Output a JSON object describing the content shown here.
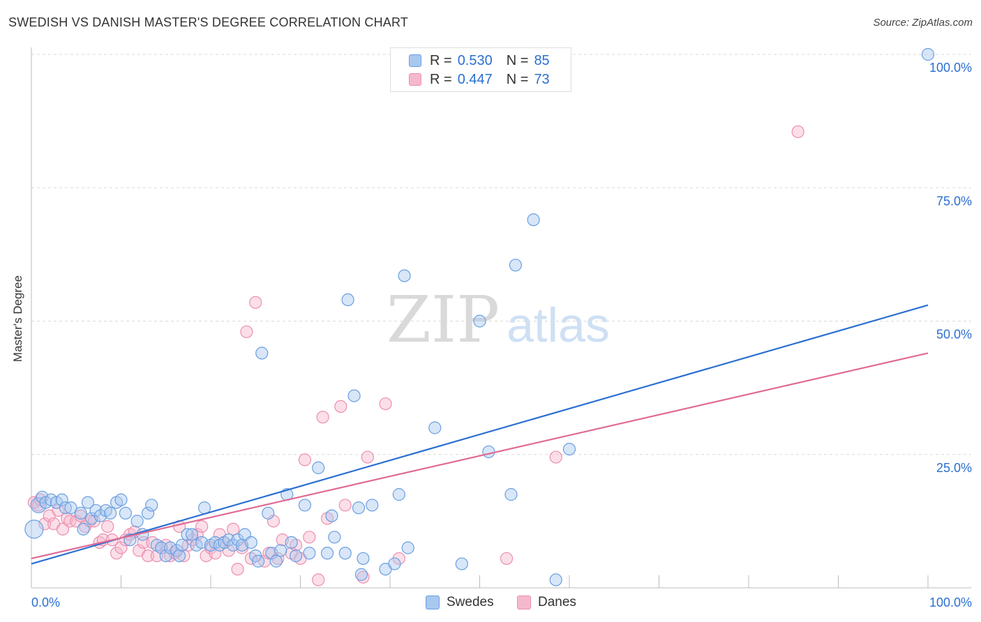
{
  "title": "SWEDISH VS DANISH MASTER'S DEGREE CORRELATION CHART",
  "source": "Source: ZipAtlas.com",
  "watermark": {
    "zip": "ZIP",
    "atlas": "atlas"
  },
  "legend_top": [
    {
      "r_label": "R =",
      "r_value": "0.530",
      "n_label": "N =",
      "n_value": "85"
    },
    {
      "r_label": "R =",
      "r_value": "0.447",
      "n_label": "N =",
      "n_value": "73"
    }
  ],
  "legend_bottom": [
    "Swedes",
    "Danes"
  ],
  "colors": {
    "swedes_fill": "#a9c8f0",
    "swedes_stroke": "#6a9fe0",
    "swedes_line": "#2b6fd1",
    "danes_fill": "#f6b8cc",
    "danes_stroke": "#ec8fae",
    "danes_line": "#e06a93",
    "tick_label": "#2b6fd1",
    "grid": "#d8d8d8"
  },
  "chart_data": {
    "type": "scatter",
    "title": "SWEDISH VS DANISH MASTER'S DEGREE CORRELATION CHART",
    "xlabel": "",
    "ylabel": "Master's Degree",
    "xlim": [
      0,
      100
    ],
    "ylim": [
      0,
      100
    ],
    "x_tick_labels": [
      "0.0%",
      "100.0%"
    ],
    "y_tick_labels": [
      "100.0%",
      "75.0%",
      "50.0%",
      "25.0%"
    ],
    "y_ticks": [
      100,
      75,
      50,
      25
    ],
    "grid": true,
    "legend_placement": "top-center",
    "series": [
      {
        "name": "Swedes",
        "color": "#6a9fe0",
        "trend": {
          "x": [
            0,
            100
          ],
          "y": [
            4.5,
            53.0
          ]
        },
        "points": [
          [
            0.3,
            11
          ],
          [
            0.8,
            15.5
          ],
          [
            1.2,
            17
          ],
          [
            1.6,
            16
          ],
          [
            2.2,
            16.5
          ],
          [
            2.8,
            16
          ],
          [
            3.4,
            16.5
          ],
          [
            3.8,
            15
          ],
          [
            4.4,
            15
          ],
          [
            5.5,
            14
          ],
          [
            5.8,
            11
          ],
          [
            6.3,
            16
          ],
          [
            6.7,
            13
          ],
          [
            7.2,
            14.5
          ],
          [
            7.7,
            13.5
          ],
          [
            8.3,
            14.5
          ],
          [
            8.8,
            14
          ],
          [
            9.5,
            16
          ],
          [
            10.0,
            16.5
          ],
          [
            10.5,
            14
          ],
          [
            11.0,
            9
          ],
          [
            11.8,
            12.5
          ],
          [
            12.4,
            10
          ],
          [
            13.0,
            14
          ],
          [
            13.4,
            15.5
          ],
          [
            14.0,
            8
          ],
          [
            14.5,
            7.5
          ],
          [
            15.0,
            6
          ],
          [
            15.5,
            7.5
          ],
          [
            16.2,
            7
          ],
          [
            16.5,
            6
          ],
          [
            16.8,
            8
          ],
          [
            17.4,
            10
          ],
          [
            17.9,
            10
          ],
          [
            18.4,
            8
          ],
          [
            19.0,
            8.5
          ],
          [
            19.3,
            15
          ],
          [
            20.0,
            8
          ],
          [
            20.5,
            8.5
          ],
          [
            21.0,
            8
          ],
          [
            21.5,
            8.5
          ],
          [
            22.0,
            9
          ],
          [
            22.5,
            8
          ],
          [
            23.0,
            9
          ],
          [
            23.5,
            8
          ],
          [
            23.8,
            10
          ],
          [
            24.5,
            8.5
          ],
          [
            25.0,
            6
          ],
          [
            25.3,
            5
          ],
          [
            25.7,
            44
          ],
          [
            26.4,
            14
          ],
          [
            26.8,
            6.5
          ],
          [
            27.3,
            5
          ],
          [
            27.8,
            7
          ],
          [
            28.5,
            17.5
          ],
          [
            29.0,
            8.5
          ],
          [
            29.5,
            6
          ],
          [
            30.5,
            15.5
          ],
          [
            31.0,
            6.5
          ],
          [
            32.0,
            22.5
          ],
          [
            33.0,
            6.5
          ],
          [
            33.5,
            13.5
          ],
          [
            33.8,
            9.5
          ],
          [
            35.0,
            6.5
          ],
          [
            35.3,
            54
          ],
          [
            36.0,
            36
          ],
          [
            36.5,
            15
          ],
          [
            36.8,
            2.5
          ],
          [
            37.0,
            5.5
          ],
          [
            38.0,
            15.5
          ],
          [
            39.5,
            3.5
          ],
          [
            40.5,
            4.5
          ],
          [
            41.0,
            17.5
          ],
          [
            41.6,
            58.5
          ],
          [
            42.0,
            7.5
          ],
          [
            45.0,
            30
          ],
          [
            48.0,
            4.5
          ],
          [
            50.0,
            50
          ],
          [
            51.0,
            25.5
          ],
          [
            53.5,
            17.5
          ],
          [
            54.0,
            60.5
          ],
          [
            56.0,
            69
          ],
          [
            58.5,
            1.5
          ],
          [
            60.0,
            26
          ],
          [
            100.0,
            100
          ]
        ],
        "sizes": {
          "0.3,11": 26
        }
      },
      {
        "name": "Danes",
        "color": "#ec8fae",
        "trend": {
          "x": [
            0,
            100
          ],
          "y": [
            5.5,
            44.0
          ]
        },
        "points": [
          [
            0.3,
            16
          ],
          [
            0.8,
            15.5
          ],
          [
            1.0,
            16.5
          ],
          [
            1.5,
            12
          ],
          [
            2.0,
            13.5
          ],
          [
            2.5,
            12
          ],
          [
            3.0,
            14.5
          ],
          [
            3.5,
            11
          ],
          [
            4.0,
            13
          ],
          [
            4.3,
            12.5
          ],
          [
            5.0,
            12.5
          ],
          [
            5.5,
            13.5
          ],
          [
            6.0,
            11.5
          ],
          [
            6.5,
            12.5
          ],
          [
            7.0,
            12.5
          ],
          [
            7.6,
            8.5
          ],
          [
            8.0,
            9
          ],
          [
            8.5,
            11.5
          ],
          [
            9.0,
            9
          ],
          [
            9.5,
            6.5
          ],
          [
            10.0,
            7.5
          ],
          [
            10.5,
            9
          ],
          [
            11.0,
            10
          ],
          [
            11.5,
            10.5
          ],
          [
            12.0,
            7
          ],
          [
            12.5,
            8.5
          ],
          [
            13.0,
            6
          ],
          [
            13.5,
            8.5
          ],
          [
            14.0,
            6
          ],
          [
            14.5,
            7.5
          ],
          [
            15.0,
            8
          ],
          [
            15.5,
            6
          ],
          [
            16.0,
            6.5
          ],
          [
            16.5,
            11.5
          ],
          [
            17.0,
            6
          ],
          [
            17.5,
            8
          ],
          [
            18.0,
            9
          ],
          [
            18.5,
            10
          ],
          [
            19.0,
            11.5
          ],
          [
            19.5,
            6
          ],
          [
            20.0,
            7.5
          ],
          [
            20.5,
            6.5
          ],
          [
            21.0,
            10
          ],
          [
            21.5,
            8.5
          ],
          [
            22.0,
            7
          ],
          [
            22.5,
            11
          ],
          [
            23.0,
            3.5
          ],
          [
            23.5,
            7.5
          ],
          [
            24.0,
            48
          ],
          [
            24.5,
            5.5
          ],
          [
            25.0,
            53.5
          ],
          [
            26.0,
            5
          ],
          [
            26.5,
            6.5
          ],
          [
            27.0,
            12.5
          ],
          [
            27.5,
            5.5
          ],
          [
            28.0,
            9
          ],
          [
            29.0,
            6.5
          ],
          [
            29.5,
            8
          ],
          [
            30.0,
            5.5
          ],
          [
            30.5,
            24
          ],
          [
            31.0,
            9.5
          ],
          [
            32.0,
            1.5
          ],
          [
            32.5,
            32
          ],
          [
            33.0,
            13
          ],
          [
            34.5,
            34
          ],
          [
            35.0,
            15.5
          ],
          [
            37.0,
            2
          ],
          [
            37.5,
            24.5
          ],
          [
            39.5,
            34.5
          ],
          [
            41.0,
            5.5
          ],
          [
            53.0,
            5.5
          ],
          [
            58.5,
            24.5
          ],
          [
            85.5,
            85.5
          ]
        ]
      }
    ]
  }
}
